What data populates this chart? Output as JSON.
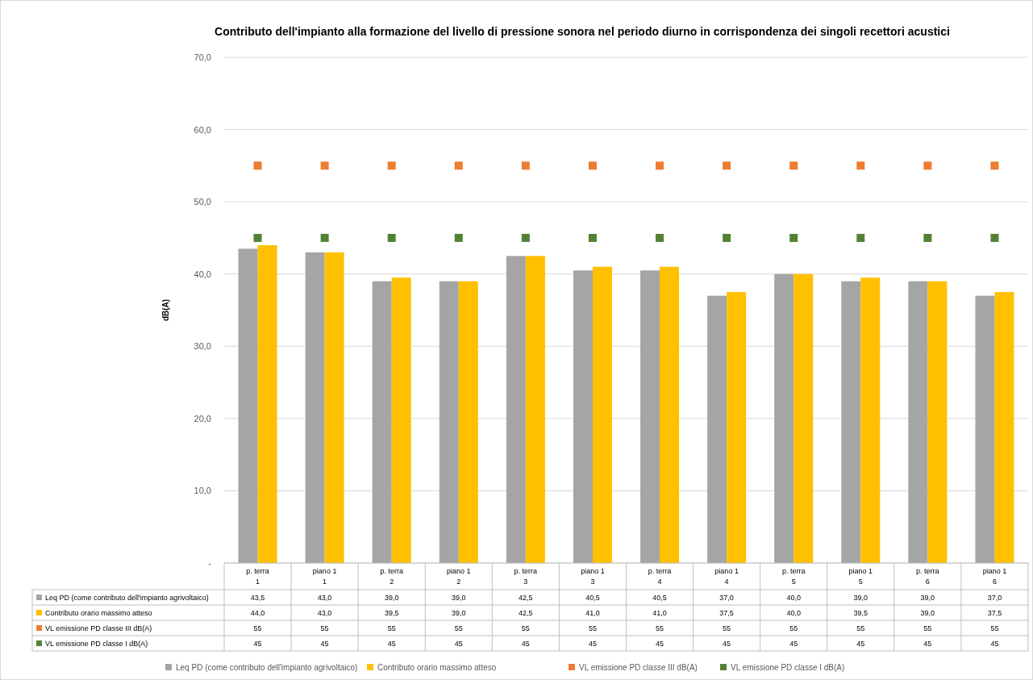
{
  "chart_data": {
    "type": "bar",
    "title": "Contributo dell'impianto alla formazione del livello di pressione sonora nel periodo diurno in corrispondenza dei singoli recettori acustici",
    "ylabel": "dB(A)",
    "categories": [
      "p. terra\n1",
      "piano 1\n1",
      "p. terra\n2",
      "piano 1\n2",
      "p. terra\n3",
      "piano 1\n3",
      "p. terra\n4",
      "piano 1\n4",
      "p. terra\n5",
      "piano 1\n5",
      "p. terra\n6",
      "piano 1\n6"
    ],
    "series": [
      {
        "name": "Leq PD (come contributo dell'impianto agrivoltaico)",
        "color": "#a5a5a5",
        "values": [
          43.5,
          43.0,
          39.0,
          39.0,
          42.5,
          40.5,
          40.5,
          37.0,
          40.0,
          39.0,
          39.0,
          37.0
        ],
        "value_labels": [
          "43,5",
          "43,0",
          "39,0",
          "39,0",
          "42,5",
          "40,5",
          "40,5",
          "37,0",
          "40,0",
          "39,0",
          "39,0",
          "37,0"
        ]
      },
      {
        "name": "Contributo orario massimo atteso",
        "color": "#ffc000",
        "values": [
          44.0,
          43.0,
          39.5,
          39.0,
          42.5,
          41.0,
          41.0,
          37.5,
          40.0,
          39.5,
          39.0,
          37.5
        ],
        "value_labels": [
          "44,0",
          "43,0",
          "39,5",
          "39,0",
          "42,5",
          "41,0",
          "41,0",
          "37,5",
          "40,0",
          "39,5",
          "39,0",
          "37,5"
        ]
      },
      {
        "name": "VL emissione PD classe III dB(A)",
        "type": "scatter",
        "marker": "square",
        "color": "#ed7d31",
        "values": [
          55,
          55,
          55,
          55,
          55,
          55,
          55,
          55,
          55,
          55,
          55,
          55
        ],
        "value_labels": [
          "55",
          "55",
          "55",
          "55",
          "55",
          "55",
          "55",
          "55",
          "55",
          "55",
          "55",
          "55"
        ]
      },
      {
        "name": "VL emissione PD classe I dB(A)",
        "type": "scatter",
        "marker": "square",
        "color": "#548235",
        "values": [
          45,
          45,
          45,
          45,
          45,
          45,
          45,
          45,
          45,
          45,
          45,
          45
        ],
        "value_labels": [
          "45",
          "45",
          "45",
          "45",
          "45",
          "45",
          "45",
          "45",
          "45",
          "45",
          "45",
          "45"
        ]
      }
    ],
    "ylim": [
      0,
      70
    ],
    "yticks": [
      {
        "value": 0,
        "label": "-"
      },
      {
        "value": 10,
        "label": "10,0"
      },
      {
        "value": 20,
        "label": "20,0"
      },
      {
        "value": 30,
        "label": "30,0"
      },
      {
        "value": 40,
        "label": "40,0"
      },
      {
        "value": 50,
        "label": "50,0"
      },
      {
        "value": 60,
        "label": "60,0"
      },
      {
        "value": 70,
        "label": "70,0"
      }
    ],
    "grid": "y",
    "legend": "bottom"
  }
}
